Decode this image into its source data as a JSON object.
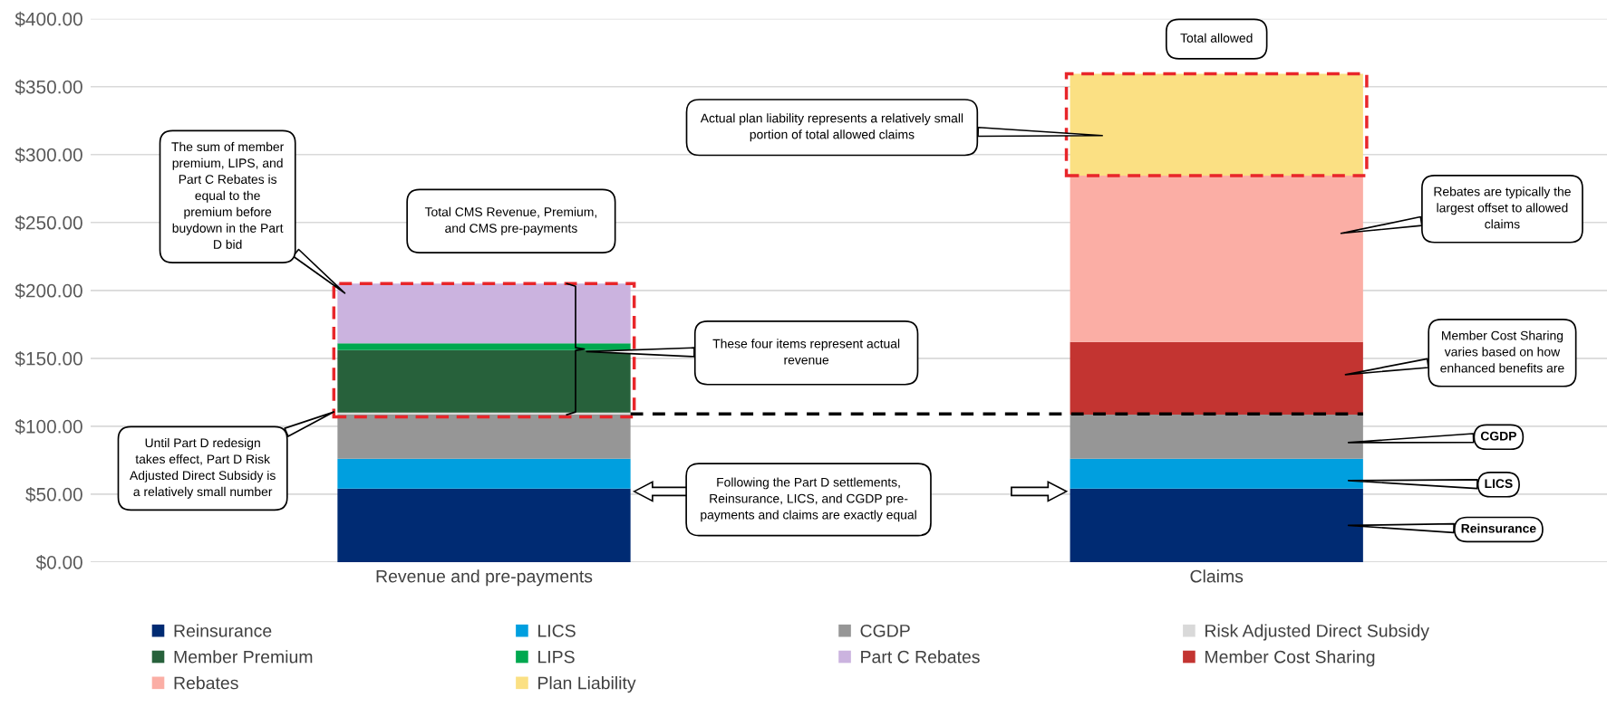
{
  "chart_data": {
    "type": "bar",
    "stacked": true,
    "categories": [
      "Revenue and pre-payments",
      "Claims"
    ],
    "series": [
      {
        "name": "Reinsurance",
        "color": "#002b73",
        "values": [
          54,
          54
        ]
      },
      {
        "name": "LICS",
        "color": "#009fdf",
        "values": [
          22,
          22
        ]
      },
      {
        "name": "CGDP",
        "color": "#969696",
        "values": [
          32.5,
          32.5
        ]
      },
      {
        "name": "Risk Adjusted Direct Subsidy",
        "color": "#d9d9d9",
        "values": [
          1.5,
          null
        ]
      },
      {
        "name": "Member Premium",
        "color": "#27613b",
        "values": [
          46,
          null
        ]
      },
      {
        "name": "LIPS",
        "color": "#00a84f",
        "values": [
          5,
          null
        ]
      },
      {
        "name": "Part C Rebates",
        "color": "#cbb3df",
        "values": [
          44,
          null
        ]
      },
      {
        "name": "Member Cost Sharing",
        "color": "#c33431",
        "values": [
          null,
          53.5
        ]
      },
      {
        "name": "Rebates",
        "color": "#fbaea5",
        "values": [
          null,
          122.5
        ]
      },
      {
        "name": "Plan Liability",
        "color": "#fbe083",
        "values": [
          null,
          75
        ]
      }
    ],
    "ylim": [
      0,
      400
    ],
    "yticks": [
      {
        "value": 0,
        "label": "$0.00"
      },
      {
        "value": 50,
        "label": "$50.00"
      },
      {
        "value": 100,
        "label": "$100.00"
      },
      {
        "value": 150,
        "label": "$150.00"
      },
      {
        "value": 200,
        "label": "$200.00"
      },
      {
        "value": 250,
        "label": "$250.00"
      },
      {
        "value": 300,
        "label": "$300.00"
      },
      {
        "value": 350,
        "label": "$350.00"
      },
      {
        "value": 400,
        "label": "$400.00"
      }
    ],
    "grid": "y",
    "legend": "bottom",
    "ref_lines": [
      {
        "axis": "y",
        "value": 109,
        "color": "#000000",
        "line_style": "dashed"
      }
    ],
    "annotations": [
      "The sum of member\npremium, LIPS, and\nPart C Rebates is\nequal to the\npremium before\nbuydown in the Part\nD bid",
      "Total CMS Revenue, Premium,\nand CMS pre-payments",
      "These four items represent actual\nrevenue",
      "Until Part D redesign\ntakes effect, Part D Risk\nAdjusted Direct Subsidy is\na relatively small number",
      "Following the Part D settlements,\nReinsurance, LICS, and CGDP pre-\npayments and claims are exactly equal",
      "Total allowed",
      "Actual plan liability represents a relatively small\nportion of total allowed claims",
      "Rebates are typically the\nlargest offset to allowed\nclaims",
      "Member Cost Sharing\nvaries based on how\nenhanced benefits are",
      "CGDP",
      "LICS",
      "Reinsurance"
    ]
  }
}
